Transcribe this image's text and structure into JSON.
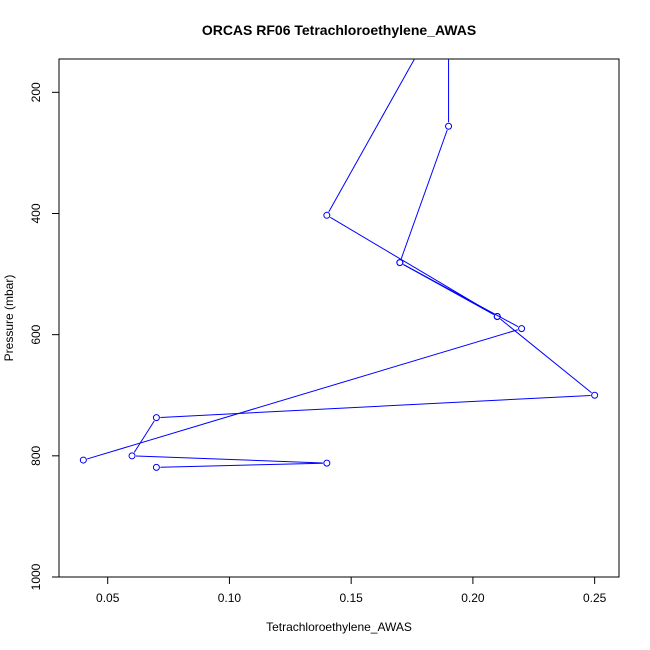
{
  "chart_data": {
    "type": "line",
    "title": "ORCAS RF06 Tetrachloroethylene_AWAS",
    "xlabel": "Tetrachloroethylene_AWAS",
    "ylabel": "Pressure (mbar)",
    "xlim": [
      0.03,
      0.26
    ],
    "ylim": [
      1000,
      145
    ],
    "y_reversed": true,
    "x_ticks": [
      0.05,
      0.1,
      0.15,
      0.2,
      0.25
    ],
    "x_tick_labels": [
      "0.05",
      "0.10",
      "0.15",
      "0.20",
      "0.25"
    ],
    "y_ticks": [
      200,
      400,
      600,
      800,
      1000
    ],
    "y_tick_labels": [
      "200",
      "400",
      "600",
      "800",
      "1000"
    ],
    "series": [
      {
        "color": "#0000ff",
        "marker": "open-circle",
        "points": [
          {
            "x": 0.19,
            "y": 145,
            "marker": false
          },
          {
            "x": 0.19,
            "y": 256,
            "marker": true
          },
          {
            "x": 0.17,
            "y": 481,
            "marker": true
          },
          {
            "x": 0.21,
            "y": 570,
            "marker": true
          },
          {
            "x": 0.14,
            "y": 403,
            "marker": true
          },
          {
            "x": 0.176,
            "y": 145,
            "marker": false
          }
        ]
      },
      {
        "color": "#0000ff",
        "marker": "open-circle",
        "points": [
          {
            "x": 0.17,
            "y": 481,
            "marker": true
          },
          {
            "x": 0.22,
            "y": 590,
            "marker": true
          },
          {
            "x": 0.04,
            "y": 807,
            "marker": true
          }
        ]
      },
      {
        "color": "#0000ff",
        "marker": "open-circle",
        "points": [
          {
            "x": 0.21,
            "y": 570,
            "marker": true
          },
          {
            "x": 0.25,
            "y": 700,
            "marker": true
          },
          {
            "x": 0.07,
            "y": 737,
            "marker": true
          },
          {
            "x": 0.06,
            "y": 800,
            "marker": true
          },
          {
            "x": 0.14,
            "y": 812,
            "marker": true
          },
          {
            "x": 0.07,
            "y": 819,
            "marker": true
          }
        ]
      }
    ],
    "grid": false,
    "legend": "none"
  }
}
